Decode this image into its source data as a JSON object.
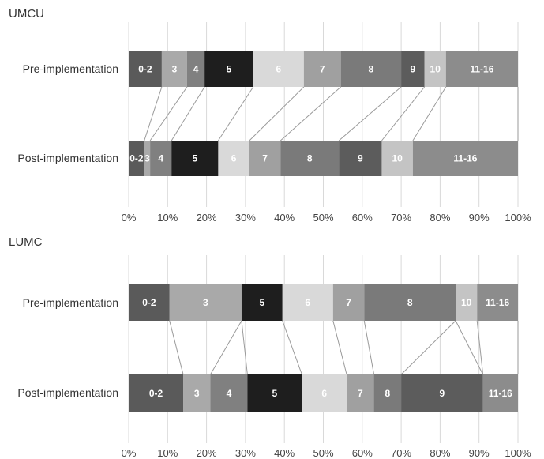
{
  "chart_data": [
    {
      "type": "bar",
      "stacked": true,
      "orientation": "horizontal",
      "title": "UMCU",
      "categories": [
        "Pre-implementation",
        "Post-implementation"
      ],
      "xlim": [
        0,
        100
      ],
      "xticks": [
        "0%",
        "10%",
        "20%",
        "30%",
        "40%",
        "50%",
        "60%",
        "70%",
        "80%",
        "90%",
        "100%"
      ],
      "grid": true,
      "series": [
        {
          "label": "0-2",
          "values": [
            8.5,
            4.0
          ],
          "color": "#5a5a5a"
        },
        {
          "label": "3",
          "values": [
            6.5,
            1.5
          ],
          "color": "#a9a9a9"
        },
        {
          "label": "4",
          "values": [
            4.5,
            5.5
          ],
          "color": "#808080"
        },
        {
          "label": "5",
          "values": [
            12.5,
            12.0
          ],
          "color": "#1e1e1e"
        },
        {
          "label": "6",
          "values": [
            13.0,
            8.0
          ],
          "color": "#d9d9d9"
        },
        {
          "label": "7",
          "values": [
            9.5,
            8.0
          ],
          "color": "#a0a0a0"
        },
        {
          "label": "8",
          "values": [
            15.5,
            15.0
          ],
          "color": "#7a7a7a"
        },
        {
          "label": "9",
          "values": [
            6.0,
            11.0
          ],
          "color": "#5c5c5c"
        },
        {
          "label": "10",
          "values": [
            5.5,
            8.0
          ],
          "color": "#c4c4c4"
        },
        {
          "label": "11-16",
          "values": [
            18.5,
            27.0
          ],
          "color": "#8c8c8c"
        }
      ]
    },
    {
      "type": "bar",
      "stacked": true,
      "orientation": "horizontal",
      "title": "LUMC",
      "categories": [
        "Pre-implementation",
        "Post-implementation"
      ],
      "xlim": [
        0,
        100
      ],
      "xticks": [
        "0%",
        "10%",
        "20%",
        "30%",
        "40%",
        "50%",
        "60%",
        "70%",
        "80%",
        "90%",
        "100%"
      ],
      "grid": true,
      "series": [
        {
          "label": "0-2",
          "values": [
            10.5,
            14.0
          ],
          "color": "#5a5a5a"
        },
        {
          "label": "3",
          "values": [
            18.5,
            7.0
          ],
          "color": "#a9a9a9"
        },
        {
          "label": "4",
          "values": [
            0,
            9.5
          ],
          "color": "#808080"
        },
        {
          "label": "5",
          "values": [
            10.5,
            14.0
          ],
          "color": "#1e1e1e"
        },
        {
          "label": "6",
          "values": [
            13.0,
            11.5
          ],
          "color": "#d9d9d9"
        },
        {
          "label": "7",
          "values": [
            8.0,
            7.0
          ],
          "color": "#a0a0a0"
        },
        {
          "label": "8",
          "values": [
            23.5,
            7.0
          ],
          "color": "#7a7a7a"
        },
        {
          "label": "9",
          "values": [
            0,
            21.0
          ],
          "color": "#5c5c5c"
        },
        {
          "label": "10",
          "values": [
            5.5,
            0
          ],
          "color": "#c4c4c4"
        },
        {
          "label": "11-16",
          "values": [
            10.5,
            9.0
          ],
          "color": "#8c8c8c"
        }
      ]
    }
  ]
}
